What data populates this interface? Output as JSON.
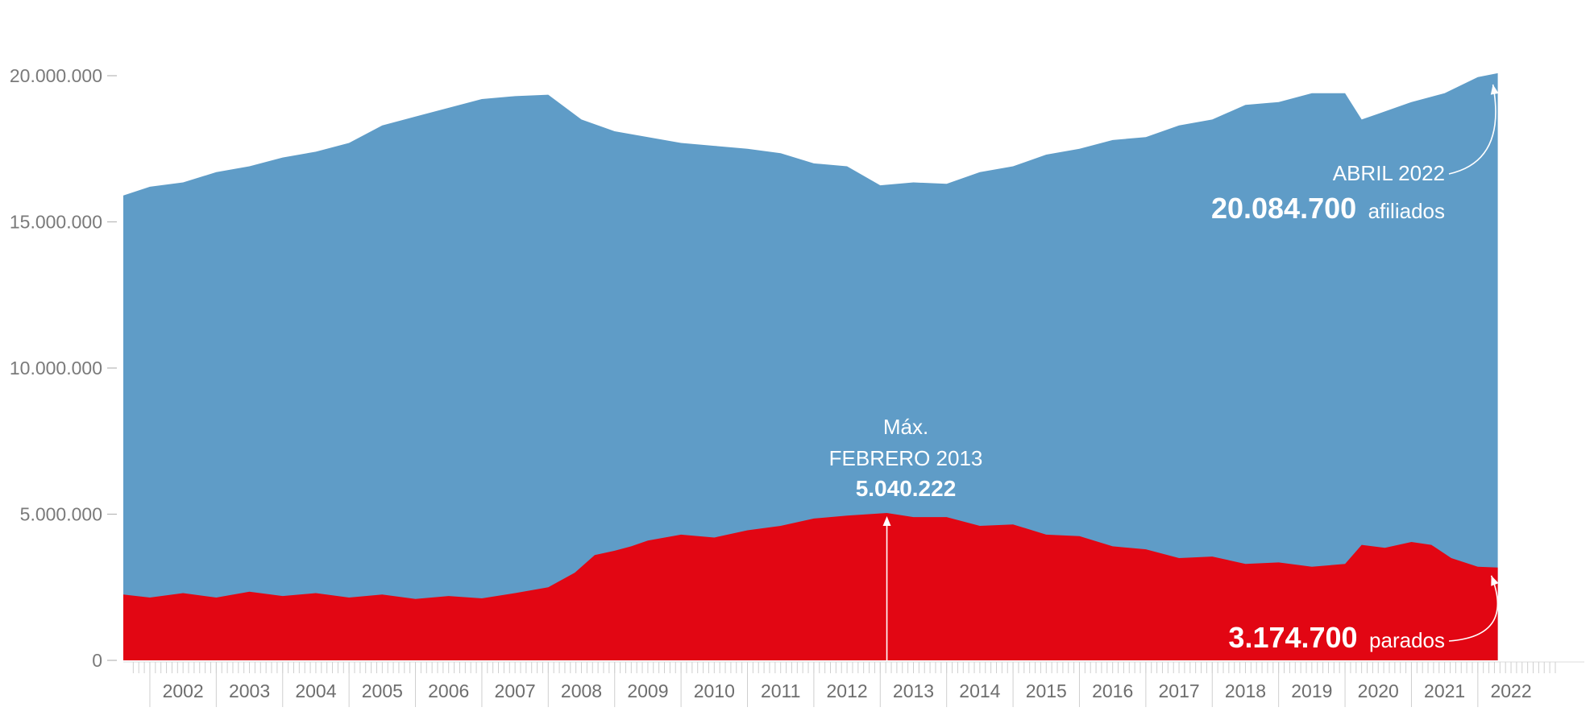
{
  "chart_data": {
    "type": "area",
    "title": "",
    "xlabel": "",
    "ylabel": "",
    "ylim": [
      0,
      20000000
    ],
    "xlim": [
      2001.6,
      2022.9
    ],
    "y_ticks": [
      {
        "value": 0,
        "label": "0"
      },
      {
        "value": 5000000,
        "label": "5.000.000"
      },
      {
        "value": 10000000,
        "label": "10.000.000"
      },
      {
        "value": 15000000,
        "label": "15.000.000"
      },
      {
        "value": 20000000,
        "label": "20.000.000"
      }
    ],
    "x_tick_labels": [
      "2002",
      "2003",
      "2004",
      "2005",
      "2006",
      "2007",
      "2008",
      "2009",
      "2010",
      "2011",
      "2012",
      "2013",
      "2014",
      "2015",
      "2016",
      "2017",
      "2018",
      "2019",
      "2020",
      "2021",
      "2022"
    ],
    "colors": {
      "afiliados": "#5f9cc7",
      "parados": "#e20613",
      "axis": "#b8b8b8",
      "annotation": "#ffffff"
    },
    "series": [
      {
        "key": "afiliados",
        "x": [
          2001.6,
          2002.0,
          2002.5,
          2003.0,
          2003.5,
          2004.0,
          2004.5,
          2005.0,
          2005.5,
          2006.0,
          2006.5,
          2007.0,
          2007.5,
          2008.0,
          2008.5,
          2009.0,
          2009.5,
          2010.0,
          2010.5,
          2011.0,
          2011.5,
          2012.0,
          2012.5,
          2013.0,
          2013.5,
          2014.0,
          2014.5,
          2015.0,
          2015.5,
          2016.0,
          2016.5,
          2017.0,
          2017.5,
          2018.0,
          2018.5,
          2019.0,
          2019.5,
          2020.0,
          2020.25,
          2020.5,
          2021.0,
          2021.5,
          2022.0,
          2022.3
        ],
        "y": [
          15900000,
          16200000,
          16350000,
          16700000,
          16900000,
          17200000,
          17400000,
          17700000,
          18300000,
          18600000,
          18900000,
          19200000,
          19300000,
          19350000,
          18500000,
          18100000,
          17900000,
          17700000,
          17600000,
          17500000,
          17350000,
          17000000,
          16900000,
          16250000,
          16350000,
          16300000,
          16700000,
          16900000,
          17300000,
          17500000,
          17800000,
          17900000,
          18300000,
          18500000,
          19000000,
          19100000,
          19400000,
          19400000,
          18500000,
          18700000,
          19100000,
          19400000,
          19950000,
          20084700
        ]
      },
      {
        "key": "parados",
        "x": [
          2001.6,
          2002.0,
          2002.5,
          2003.0,
          2003.5,
          2004.0,
          2004.5,
          2005.0,
          2005.5,
          2006.0,
          2006.5,
          2007.0,
          2007.5,
          2008.0,
          2008.4,
          2008.7,
          2009.0,
          2009.25,
          2009.5,
          2010.0,
          2010.5,
          2011.0,
          2011.5,
          2012.0,
          2012.5,
          2013.1,
          2013.5,
          2014.0,
          2014.5,
          2015.0,
          2015.5,
          2016.0,
          2016.5,
          2017.0,
          2017.5,
          2018.0,
          2018.5,
          2019.0,
          2019.5,
          2020.0,
          2020.25,
          2020.6,
          2021.0,
          2021.3,
          2021.6,
          2022.0,
          2022.3
        ],
        "y": [
          2250000,
          2150000,
          2300000,
          2150000,
          2350000,
          2200000,
          2300000,
          2150000,
          2250000,
          2100000,
          2200000,
          2120000,
          2300000,
          2500000,
          3000000,
          3600000,
          3750000,
          3900000,
          4100000,
          4300000,
          4200000,
          4450000,
          4600000,
          4850000,
          4950000,
          5040222,
          4900000,
          4900000,
          4600000,
          4650000,
          4300000,
          4250000,
          3900000,
          3800000,
          3500000,
          3550000,
          3300000,
          3350000,
          3200000,
          3300000,
          3950000,
          3850000,
          4050000,
          3950000,
          3500000,
          3200000,
          3174700
        ]
      }
    ],
    "annotations": {
      "afiliados": {
        "line1": "ABRIL 2022",
        "value": "20.084.700",
        "unit": "afiliados",
        "point": [
          2022.3,
          20084700
        ]
      },
      "max_parados": {
        "line1": "Máx.",
        "line2": "FEBRERO 2013",
        "value": "5.040.222",
        "point": [
          2013.1,
          5040222
        ]
      },
      "parados": {
        "value": "3.174.700",
        "unit": "parados",
        "point": [
          2022.3,
          3174700
        ]
      }
    }
  }
}
